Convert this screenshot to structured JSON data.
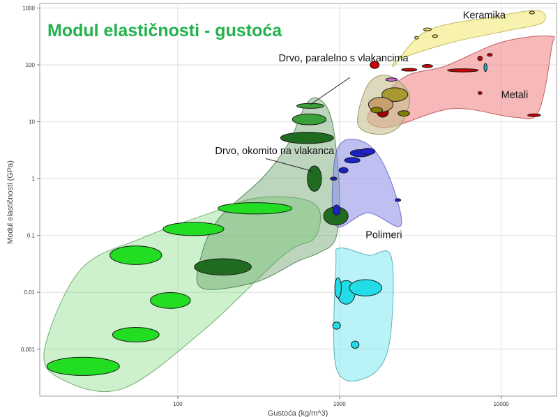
{
  "chart_data": {
    "type": "scatter",
    "title": "Modul elastičnosti - gustoća",
    "xlabel": "Gustoća (kg/m^3)",
    "ylabel": "Modul elastičnosti (GPa)",
    "xscale": "log",
    "yscale": "log",
    "xlim": [
      14,
      22000
    ],
    "ylim": [
      0.00015,
      1200
    ],
    "grid": true,
    "x_ticks": [
      {
        "value": 100,
        "label": "100"
      },
      {
        "value": 1000,
        "label": "1000"
      },
      {
        "value": 10000,
        "label": "10000"
      }
    ],
    "y_ticks": [
      {
        "value": 0.001,
        "label": "0.001"
      },
      {
        "value": 0.01,
        "label": "0.01"
      },
      {
        "value": 0.1,
        "label": "0.1"
      },
      {
        "value": 1,
        "label": "1"
      },
      {
        "value": 10,
        "label": "10"
      },
      {
        "value": 100,
        "label": "100"
      },
      {
        "value": 1000,
        "label": "1000"
      }
    ],
    "envelopes": [
      {
        "group": "foams",
        "fill": "#8ee08e",
        "opacity": 0.45,
        "stroke": "#5a9a5a",
        "points": [
          [
            19,
            0.0003
          ],
          [
            45,
            0.0002
          ],
          [
            140,
            0.002
          ],
          [
            450,
            0.045
          ],
          [
            700,
            0.09
          ],
          [
            750,
            0.28
          ],
          [
            560,
            0.45
          ],
          [
            300,
            0.45
          ],
          [
            160,
            0.25
          ],
          [
            60,
            0.09
          ],
          [
            25,
            0.025
          ],
          [
            15,
            0.001
          ]
        ]
      },
      {
        "group": "wood",
        "fill": "#5f9a5f",
        "opacity": 0.42,
        "stroke": "#3f6f3f",
        "points": [
          [
            140,
            0.012
          ],
          [
            300,
            0.015
          ],
          [
            550,
            0.035
          ],
          [
            750,
            0.05
          ],
          [
            950,
            0.09
          ],
          [
            1000,
            0.6
          ],
          [
            900,
            10
          ],
          [
            750,
            25
          ],
          [
            620,
            20
          ],
          [
            480,
            4
          ],
          [
            330,
            1
          ],
          [
            180,
            0.2
          ],
          [
            140,
            0.045
          ]
        ]
      },
      {
        "group": "polymers",
        "fill": "#8a8ae8",
        "opacity": 0.55,
        "stroke": "#5555bb",
        "points": [
          [
            950,
            0.15
          ],
          [
            1500,
            0.25
          ],
          [
            2400,
            0.15
          ],
          [
            2000,
            1.2
          ],
          [
            1500,
            4
          ],
          [
            1050,
            4.5
          ],
          [
            920,
            1.5
          ]
        ]
      },
      {
        "group": "elastomers",
        "fill": "#7fe8f0",
        "opacity": 0.55,
        "stroke": "#3aa0aa",
        "points": [
          [
            950,
            0.0005
          ],
          [
            1400,
            0.0003
          ],
          [
            2000,
            0.001
          ],
          [
            2100,
            0.04
          ],
          [
            1500,
            0.045
          ],
          [
            1000,
            0.06
          ],
          [
            950,
            0.03
          ]
        ]
      },
      {
        "group": "metals",
        "fill": "#f08888",
        "opacity": 0.6,
        "stroke": "#b04545",
        "points": [
          [
            1500,
            13
          ],
          [
            2500,
            60
          ],
          [
            4500,
            95
          ],
          [
            10000,
            250
          ],
          [
            20000,
            320
          ],
          [
            20500,
            200
          ],
          [
            17000,
            15
          ],
          [
            12000,
            12
          ],
          [
            5000,
            17
          ],
          [
            2000,
            8
          ]
        ]
      },
      {
        "group": "ceramics",
        "fill": "#f6f0a0",
        "opacity": 0.85,
        "stroke": "#b8aa40",
        "points": [
          [
            2200,
            100
          ],
          [
            3500,
            400
          ],
          [
            9000,
            700
          ],
          [
            17000,
            900
          ],
          [
            18000,
            550
          ],
          [
            11000,
            400
          ],
          [
            5000,
            250
          ],
          [
            2400,
            130
          ]
        ]
      },
      {
        "group": "composites",
        "fill": "#c8c090",
        "opacity": 0.6,
        "stroke": "#8a8450",
        "points": [
          [
            1300,
            9
          ],
          [
            1800,
            6
          ],
          [
            2400,
            9
          ],
          [
            2700,
            30
          ],
          [
            2000,
            65
          ],
          [
            1500,
            45
          ]
        ]
      }
    ],
    "materials": [
      {
        "group": "foams",
        "x": 26,
        "y": 0.0005,
        "w": 2.8,
        "h": 2.0,
        "color": "#22dd22"
      },
      {
        "group": "foams",
        "x": 55,
        "y": 0.0018,
        "w": 1.8,
        "h": 1.6,
        "color": "#22dd22"
      },
      {
        "group": "foams",
        "x": 90,
        "y": 0.0072,
        "w": 1.55,
        "h": 1.75,
        "color": "#22dd22"
      },
      {
        "group": "foams",
        "x": 55,
        "y": 0.045,
        "w": 2.0,
        "h": 2.05,
        "color": "#22dd22"
      },
      {
        "group": "foams",
        "x": 125,
        "y": 0.13,
        "w": 2.35,
        "h": 1.45,
        "color": "#22dd22"
      },
      {
        "group": "foams",
        "x": 300,
        "y": 0.3,
        "w": 2.85,
        "h": 1.25,
        "color": "#22dd22"
      },
      {
        "group": "wood",
        "x": 190,
        "y": 0.028,
        "w": 2.2,
        "h": 1.8,
        "color": "#1f6b1f"
      },
      {
        "group": "wood",
        "x": 700,
        "y": 1.0,
        "w": 0.55,
        "h": 2.8,
        "color": "#1f6b1f"
      },
      {
        "group": "wood",
        "x": 950,
        "y": 0.22,
        "w": 0.95,
        "h": 2.0,
        "color": "#1f6b1f"
      },
      {
        "group": "wood",
        "x": 630,
        "y": 5.2,
        "w": 2.05,
        "h": 1.25,
        "color": "#1f6b1f"
      },
      {
        "group": "wood",
        "x": 650,
        "y": 11,
        "w": 1.3,
        "h": 1.2,
        "color": "#3aa03a"
      },
      {
        "group": "wood",
        "x": 660,
        "y": 19,
        "w": 1.05,
        "h": 0.55,
        "color": "#3aa03a"
      },
      {
        "group": "polymers",
        "x": 1350,
        "y": 2.8,
        "w": 0.8,
        "h": 0.8,
        "color": "#1d22c8"
      },
      {
        "group": "polymers",
        "x": 1200,
        "y": 2.1,
        "w": 0.6,
        "h": 0.6,
        "color": "#1d22c8"
      },
      {
        "group": "polymers",
        "x": 1500,
        "y": 3.0,
        "w": 0.55,
        "h": 0.7,
        "color": "#1d22c8"
      },
      {
        "group": "polymers",
        "x": 1060,
        "y": 1.4,
        "w": 0.35,
        "h": 0.6,
        "color": "#1d22c8"
      },
      {
        "group": "polymers",
        "x": 920,
        "y": 1.0,
        "w": 0.25,
        "h": 0.35,
        "color": "#1d22c8"
      },
      {
        "group": "polymers",
        "x": 960,
        "y": 0.28,
        "w": 0.28,
        "h": 1.1,
        "color": "#1d22c8"
      },
      {
        "group": "polymers",
        "x": 2300,
        "y": 0.42,
        "w": 0.22,
        "h": 0.3,
        "color": "#1d22c8"
      },
      {
        "group": "elastomers",
        "x": 1100,
        "y": 0.01,
        "w": 0.7,
        "h": 2.6,
        "color": "#22dde8"
      },
      {
        "group": "elastomers",
        "x": 1450,
        "y": 0.012,
        "w": 1.25,
        "h": 1.8,
        "color": "#22dde8"
      },
      {
        "group": "elastomers",
        "x": 980,
        "y": 0.012,
        "w": 0.25,
        "h": 2.2,
        "color": "#22dde8"
      },
      {
        "group": "elastomers",
        "x": 960,
        "y": 0.0026,
        "w": 0.3,
        "h": 0.8,
        "color": "#22dde8"
      },
      {
        "group": "elastomers",
        "x": 1250,
        "y": 0.0012,
        "w": 0.3,
        "h": 0.8,
        "color": "#22dde8"
      },
      {
        "group": "metals",
        "x": 5800,
        "y": 80,
        "w": 1.2,
        "h": 0.35,
        "color": "#cc0000"
      },
      {
        "group": "metals",
        "x": 3500,
        "y": 95,
        "w": 0.4,
        "h": 0.35,
        "color": "#cc0000"
      },
      {
        "group": "metals",
        "x": 2700,
        "y": 82,
        "w": 0.6,
        "h": 0.3,
        "color": "#cc0000"
      },
      {
        "group": "metals",
        "x": 1650,
        "y": 100,
        "w": 0.35,
        "h": 0.8,
        "color": "#cc0000"
      },
      {
        "group": "metals",
        "x": 8500,
        "y": 150,
        "w": 0.2,
        "h": 0.3,
        "color": "#cc0000"
      },
      {
        "group": "metals",
        "x": 7400,
        "y": 130,
        "w": 0.18,
        "h": 0.5,
        "color": "#cc0000"
      },
      {
        "group": "metals",
        "x": 16000,
        "y": 13,
        "w": 0.5,
        "h": 0.3,
        "color": "#cc0000"
      },
      {
        "group": "metals",
        "x": 7400,
        "y": 32,
        "w": 0.15,
        "h": 0.15,
        "color": "#cc0000"
      },
      {
        "group": "metals",
        "x": 8000,
        "y": 90,
        "w": 0.12,
        "h": 0.9,
        "color": "#22aacc"
      },
      {
        "group": "metals",
        "x": 2100,
        "y": 55,
        "w": 0.45,
        "h": 0.35,
        "color": "#cc66cc"
      },
      {
        "group": "composites",
        "x": 2200,
        "y": 30,
        "w": 1.0,
        "h": 1.5,
        "color": "#a89a30"
      },
      {
        "group": "composites",
        "x": 1850,
        "y": 15,
        "w": 0.45,
        "h": 1.2,
        "color": "#a00000"
      },
      {
        "group": "composites",
        "x": 1800,
        "y": 20,
        "w": 0.95,
        "h": 1.6,
        "color": "#c8a070"
      },
      {
        "group": "composites",
        "x": 1700,
        "y": 16,
        "w": 0.45,
        "h": 0.6,
        "color": "#808000"
      },
      {
        "group": "composites",
        "x": 2500,
        "y": 14,
        "w": 0.45,
        "h": 0.6,
        "color": "#808000"
      },
      {
        "group": "ceramics",
        "x": 3500,
        "y": 420,
        "w": 0.3,
        "h": 0.25,
        "color": "#f0e060"
      },
      {
        "group": "ceramics",
        "x": 3900,
        "y": 320,
        "w": 0.2,
        "h": 0.2,
        "color": "#f0e060"
      },
      {
        "group": "ceramics",
        "x": 15500,
        "y": 830,
        "w": 0.2,
        "h": 0.2,
        "color": "#f0e060"
      },
      {
        "group": "ceramics",
        "x": 3000,
        "y": 300,
        "w": 0.15,
        "h": 0.15,
        "color": "#f0e060"
      }
    ],
    "annotations": [
      {
        "text": "Keramika",
        "x": 5800,
        "y": 650
      },
      {
        "text": "Metali",
        "x": 10000,
        "y": 26
      },
      {
        "text": "Polimeri",
        "x": 1450,
        "y": 0.09
      },
      {
        "text": "Drvo, paralelno s vlakancima",
        "x": 420,
        "y": 115
      },
      {
        "text": "Drvo, okomito na vlakanca",
        "x": 170,
        "y": 2.7
      }
    ],
    "leaders": [
      {
        "from": [
          1160,
          60
        ],
        "to": [
          660,
          20
        ]
      },
      {
        "from": [
          350,
          2.25
        ],
        "to": [
          680,
          1.35
        ]
      }
    ]
  }
}
